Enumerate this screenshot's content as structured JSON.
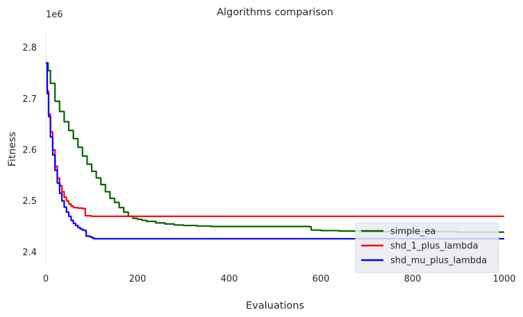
{
  "chart_data": {
    "type": "line",
    "title": "Algorithms comparison",
    "xlabel": "Evaluations",
    "ylabel": "Fitness",
    "y_offset_label": "1e6",
    "xlim": [
      0,
      1000
    ],
    "ylim": [
      2.372,
      2.828
    ],
    "xticks": [
      0,
      200,
      400,
      600,
      800,
      1000
    ],
    "xtick_labels": [
      "0",
      "200",
      "400",
      "600",
      "800",
      "1000"
    ],
    "yticks": [
      2.4,
      2.5,
      2.6,
      2.7,
      2.8
    ],
    "ytick_labels": [
      "2.4",
      "2.5",
      "2.6",
      "2.7",
      "2.8"
    ],
    "grid": false,
    "legend_position": "lower-right",
    "series": [
      {
        "name": "simple_ea",
        "color": "#006400",
        "x": [
          0,
          5,
          10,
          20,
          30,
          40,
          50,
          60,
          70,
          80,
          90,
          100,
          110,
          120,
          130,
          140,
          150,
          160,
          170,
          180,
          190,
          200,
          210,
          220,
          240,
          260,
          280,
          300,
          330,
          360,
          400,
          450,
          500,
          550,
          577,
          579,
          600,
          640,
          700,
          800,
          900,
          1000
        ],
        "y": [
          2.77,
          2.755,
          2.73,
          2.695,
          2.675,
          2.655,
          2.638,
          2.622,
          2.605,
          2.588,
          2.572,
          2.558,
          2.545,
          2.532,
          2.518,
          2.505,
          2.497,
          2.487,
          2.478,
          2.47,
          2.466,
          2.464,
          2.462,
          2.46,
          2.457,
          2.455,
          2.453,
          2.452,
          2.451,
          2.45,
          2.45,
          2.45,
          2.45,
          2.45,
          2.449,
          2.443,
          2.442,
          2.441,
          2.44,
          2.44,
          2.439,
          2.439
        ]
      },
      {
        "name": "shd_1_plus_lambda",
        "color": "#ff0000",
        "x": [
          0,
          3,
          6,
          10,
          15,
          20,
          25,
          30,
          35,
          40,
          45,
          50,
          55,
          60,
          70,
          80,
          84,
          86,
          90,
          100,
          120,
          150,
          200,
          250,
          300,
          400,
          500,
          600,
          700,
          800,
          900,
          1000
        ],
        "y": [
          2.77,
          2.715,
          2.67,
          2.635,
          2.6,
          2.568,
          2.545,
          2.53,
          2.518,
          2.507,
          2.5,
          2.494,
          2.49,
          2.487,
          2.486,
          2.485,
          2.485,
          2.471,
          2.471,
          2.47,
          2.47,
          2.47,
          2.47,
          2.47,
          2.47,
          2.47,
          2.47,
          2.47,
          2.47,
          2.47,
          2.47,
          2.47
        ]
      },
      {
        "name": "shd_mu_plus_lambda",
        "color": "#0000ff",
        "x": [
          0,
          3,
          6,
          10,
          15,
          20,
          25,
          30,
          35,
          40,
          45,
          50,
          55,
          60,
          65,
          70,
          75,
          80,
          85,
          88,
          95,
          100,
          105,
          110,
          130,
          200,
          300,
          400,
          500,
          600,
          700,
          800,
          900,
          1000
        ],
        "y": [
          2.77,
          2.71,
          2.665,
          2.625,
          2.59,
          2.56,
          2.535,
          2.515,
          2.5,
          2.488,
          2.478,
          2.47,
          2.462,
          2.456,
          2.452,
          2.448,
          2.445,
          2.443,
          2.442,
          2.431,
          2.43,
          2.428,
          2.426,
          2.426,
          2.426,
          2.426,
          2.426,
          2.426,
          2.426,
          2.426,
          2.426,
          2.426,
          2.426,
          2.426
        ]
      }
    ]
  }
}
